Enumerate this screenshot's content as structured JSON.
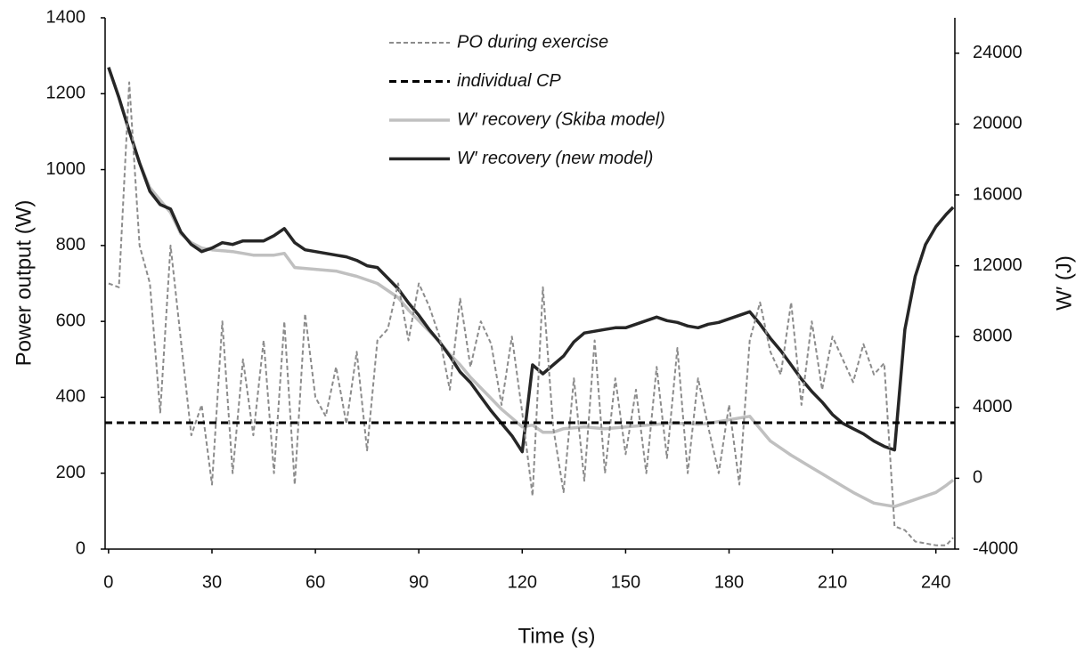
{
  "chart_data": {
    "type": "line",
    "xlabel": "Time (s)",
    "ylabel": "Power output (W)",
    "y2label": "W′ (J)",
    "xlim": [
      -1,
      245.5
    ],
    "xticks": [
      0,
      30,
      60,
      90,
      120,
      150,
      180,
      210,
      240
    ],
    "ylim": [
      0,
      1400
    ],
    "yticks": [
      0,
      200,
      400,
      600,
      800,
      1000,
      1200,
      1400
    ],
    "y2lim": [
      -4000,
      26000
    ],
    "y2ticks": [
      -4000,
      0,
      4000,
      8000,
      12000,
      16000,
      20000,
      24000
    ],
    "grid": false,
    "legend": "top",
    "x": [
      0,
      3,
      6,
      9,
      12,
      15,
      18,
      21,
      24,
      27,
      30,
      33,
      36,
      39,
      42,
      45,
      48,
      51,
      54,
      57,
      60,
      63,
      66,
      69,
      72,
      75,
      78,
      81,
      84,
      87,
      90,
      93,
      96,
      99,
      102,
      105,
      108,
      111,
      114,
      117,
      120,
      123,
      126,
      129,
      132,
      135,
      138,
      141,
      144,
      147,
      150,
      153,
      156,
      159,
      162,
      165,
      168,
      171,
      174,
      177,
      180,
      183,
      186,
      189,
      192,
      195,
      198,
      201,
      204,
      207,
      210,
      213,
      216,
      219,
      222,
      225,
      228,
      231,
      234,
      237,
      240,
      243,
      245
    ],
    "series": [
      {
        "name": "PO during exercise",
        "color": "#8c8c8c",
        "dash": "dashed-thin",
        "axis": "y",
        "values": [
          700,
          690,
          1230,
          800,
          700,
          360,
          800,
          550,
          300,
          380,
          170,
          600,
          200,
          500,
          300,
          550,
          200,
          600,
          170,
          620,
          400,
          350,
          480,
          330,
          520,
          260,
          550,
          580,
          700,
          550,
          700,
          640,
          560,
          420,
          660,
          480,
          600,
          540,
          380,
          560,
          360,
          140,
          690,
          320,
          150,
          450,
          180,
          550,
          200,
          450,
          250,
          420,
          200,
          480,
          240,
          530,
          200,
          450,
          320,
          200,
          380,
          170,
          550,
          650,
          520,
          460,
          650,
          380,
          600,
          420,
          560,
          500,
          440,
          540,
          460,
          490,
          60,
          50,
          20,
          15,
          10,
          10,
          30
        ]
      },
      {
        "name": "individual CP",
        "color": "#000000",
        "dash": "dashed-thick",
        "axis": "y",
        "x": [
          -1,
          245.5
        ],
        "values": [
          333,
          333
        ]
      },
      {
        "name": "W′ recovery (Skiba model)",
        "color": "#c0c0c0",
        "dash": "solid",
        "axis": "y2",
        "values": [
          23200,
          21500,
          19600,
          17800,
          16400,
          15700,
          15000,
          13800,
          13300,
          13000,
          12900,
          12850,
          12800,
          12700,
          12600,
          12600,
          12600,
          12700,
          11900,
          11850,
          11800,
          11750,
          11700,
          11550,
          11400,
          11200,
          11000,
          10600,
          10200,
          9500,
          8900,
          8300,
          7700,
          7000,
          6400,
          5700,
          5100,
          4500,
          3900,
          3400,
          2900,
          3000,
          2600,
          2600,
          2800,
          2850,
          2900,
          2850,
          2800,
          2850,
          2900,
          2950,
          3000,
          3050,
          3100,
          3100,
          3100,
          3050,
          3100,
          3200,
          3300,
          3400,
          3500,
          2800,
          2100,
          1700,
          1300,
          950,
          600,
          250,
          -100,
          -450,
          -800,
          -1100,
          -1400,
          -1500,
          -1600,
          -1400,
          -1200,
          -1000,
          -800,
          -400,
          -100
        ]
      },
      {
        "name": "W′ recovery (new model)",
        "color": "#262626",
        "dash": "solid",
        "axis": "y2",
        "values": [
          23200,
          21500,
          19600,
          17800,
          16200,
          15450,
          15200,
          13900,
          13200,
          12800,
          13000,
          13300,
          13200,
          13400,
          13400,
          13400,
          13700,
          14100,
          13300,
          12900,
          12800,
          12700,
          12600,
          12500,
          12300,
          12000,
          11900,
          11300,
          10700,
          9900,
          9200,
          8400,
          7700,
          6900,
          6000,
          5400,
          4600,
          3800,
          3100,
          2400,
          1500,
          6400,
          5900,
          6400,
          6900,
          7700,
          8200,
          8300,
          8400,
          8500,
          8500,
          8700,
          8900,
          9100,
          8900,
          8800,
          8600,
          8500,
          8700,
          8800,
          9000,
          9200,
          9400,
          8700,
          7900,
          7200,
          6400,
          5600,
          4900,
          4300,
          3600,
          3100,
          2800,
          2500,
          2100,
          1800,
          1600,
          8400,
          11400,
          13200,
          14200,
          14900,
          15300
        ]
      }
    ]
  }
}
